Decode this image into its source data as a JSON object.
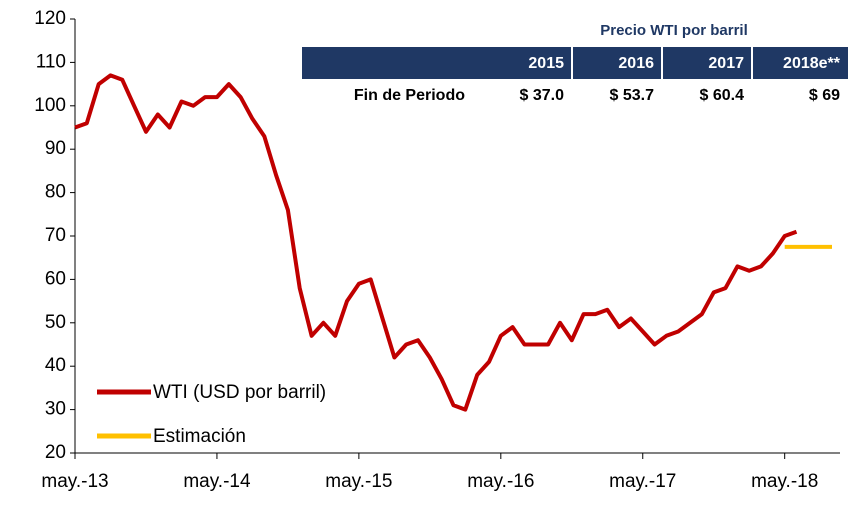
{
  "chart_data": {
    "type": "line",
    "categories": [
      "may.-13",
      null,
      null,
      null,
      null,
      null,
      null,
      null,
      null,
      null,
      null,
      null,
      "may.-14",
      null,
      null,
      null,
      null,
      null,
      null,
      null,
      null,
      null,
      null,
      null,
      "may.-15",
      null,
      null,
      null,
      null,
      null,
      null,
      null,
      null,
      null,
      null,
      null,
      "may.-16",
      null,
      null,
      null,
      null,
      null,
      null,
      null,
      null,
      null,
      null,
      null,
      "may.-17",
      null,
      null,
      null,
      null,
      null,
      null,
      null,
      null,
      null,
      null,
      null,
      "may.-18",
      null,
      null,
      null,
      null
    ],
    "series": [
      {
        "name": "WTI (USD por barril)",
        "color": "#c00000",
        "values": [
          95,
          96,
          105,
          107,
          106,
          100,
          94,
          98,
          95,
          101,
          100,
          102,
          102,
          105,
          102,
          97,
          93,
          84,
          76,
          58,
          47,
          50,
          47,
          55,
          59,
          60,
          51,
          42,
          45,
          46,
          42,
          37,
          31,
          30,
          38,
          41,
          47,
          49,
          45,
          45,
          45,
          50,
          46,
          52,
          52,
          53,
          49,
          51,
          48,
          45,
          47,
          48,
          50,
          52,
          57,
          58,
          63,
          62,
          63,
          66,
          70,
          71,
          null,
          null,
          null
        ]
      },
      {
        "name": "Estimación",
        "color": "#ffc000",
        "values": [
          null,
          null,
          null,
          null,
          null,
          null,
          null,
          null,
          null,
          null,
          null,
          null,
          null,
          null,
          null,
          null,
          null,
          null,
          null,
          null,
          null,
          null,
          null,
          null,
          null,
          null,
          null,
          null,
          null,
          null,
          null,
          null,
          null,
          null,
          null,
          null,
          null,
          null,
          null,
          null,
          null,
          null,
          null,
          null,
          null,
          null,
          null,
          null,
          null,
          null,
          null,
          null,
          null,
          null,
          null,
          null,
          null,
          null,
          null,
          null,
          67.5,
          67.5,
          67.5,
          67.5,
          67.5
        ]
      }
    ],
    "ylim": [
      20,
      120
    ],
    "yticks": [
      20,
      30,
      40,
      50,
      60,
      70,
      80,
      90,
      100,
      110,
      120
    ],
    "legend": "lower-left",
    "table": {
      "title": "Precio WTI por barril",
      "headers": [
        "2015",
        "2016",
        "2017",
        "2018e**"
      ],
      "row_label": "Fin de Periodo",
      "values": [
        "$ 37.0",
        "$ 53.7",
        "$ 60.4",
        "$ 69"
      ]
    }
  }
}
